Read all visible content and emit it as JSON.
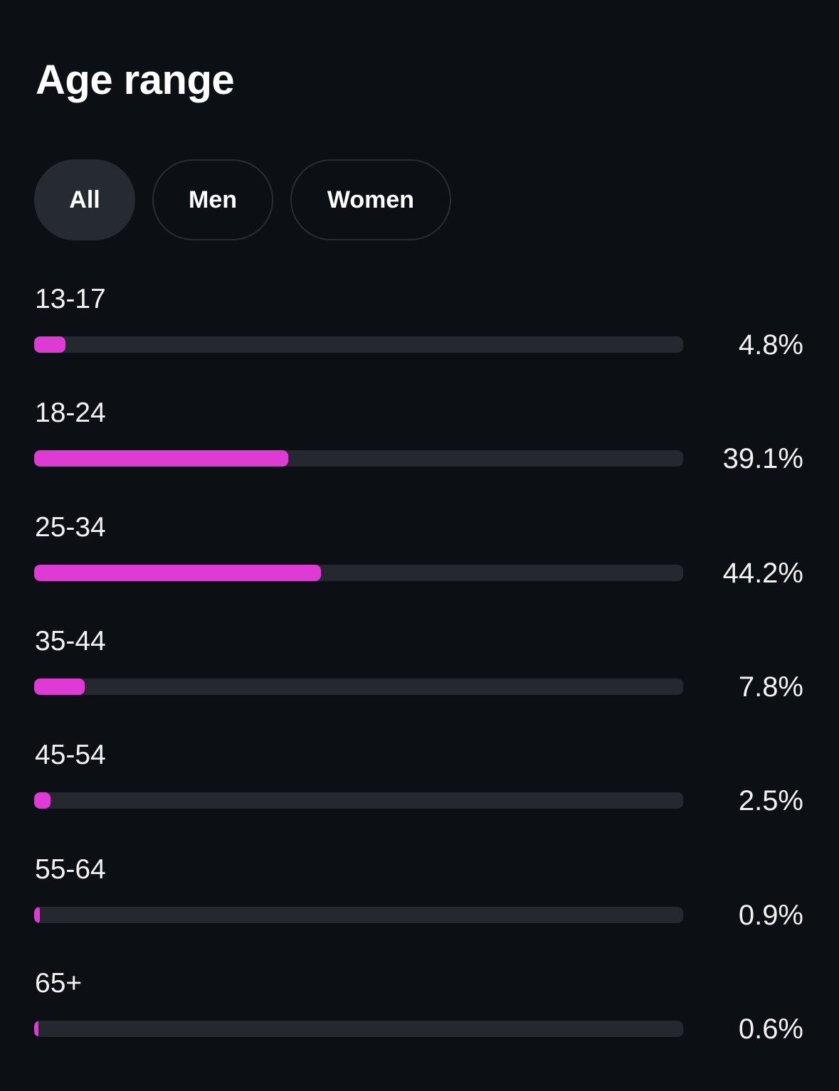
{
  "title": "Age range",
  "filters": [
    {
      "label": "All",
      "selected": true
    },
    {
      "label": "Men",
      "selected": false
    },
    {
      "label": "Women",
      "selected": false
    }
  ],
  "colors": {
    "background": "#0c0f13",
    "bar_fill": "#dd3bd4",
    "bar_track": "#26282f",
    "chip_selected": "#262a31"
  },
  "chart_data": {
    "type": "bar",
    "orientation": "horizontal",
    "categories": [
      "13-17",
      "18-24",
      "25-34",
      "35-44",
      "45-54",
      "55-64",
      "65+"
    ],
    "values": [
      4.8,
      39.1,
      44.2,
      7.8,
      2.5,
      0.9,
      0.6
    ],
    "value_labels": [
      "4.8%",
      "39.1%",
      "44.2%",
      "7.8%",
      "2.5%",
      "0.9%",
      "0.6%"
    ],
    "xlim": [
      0,
      100
    ],
    "unit": "%"
  }
}
